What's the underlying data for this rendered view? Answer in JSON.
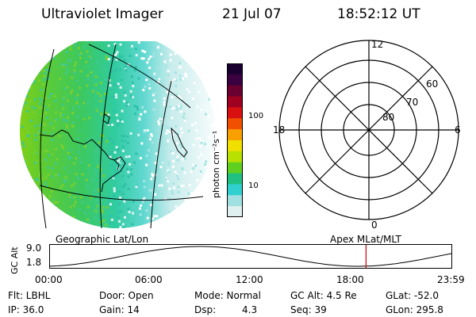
{
  "header": {
    "title": "Ultraviolet Imager",
    "date": "21 Jul 07",
    "time": "18:52:12 UT"
  },
  "colorbar": {
    "unit_label": "photon cm⁻²s⁻¹",
    "ticks": [
      "100",
      "10"
    ],
    "colors": [
      "#1a0030",
      "#3a0040",
      "#6a0030",
      "#a00020",
      "#d81010",
      "#f05000",
      "#f8a000",
      "#f0e000",
      "#b8e000",
      "#60d020",
      "#20c080",
      "#30d0d0",
      "#a0e0e0",
      "#e0f0f0"
    ]
  },
  "polar": {
    "labels": [
      "12",
      "18",
      "6",
      "0",
      "60",
      "70",
      "80"
    ]
  },
  "image_panel": {
    "caption": "Geographic Lat/Lon"
  },
  "apex_caption": "Apex MLat/MLT",
  "alt_plot": {
    "ylabel": "GC Alt",
    "y_ticks": [
      "9.0",
      "1.8"
    ],
    "x_ticks": [
      "00:00",
      "06:00",
      "12:00",
      "18:00",
      "23:59"
    ],
    "current_time_marker_hour": 18.87,
    "marker_color": "#cc0000"
  },
  "info": {
    "row1": {
      "flt": "Flt: LBHL",
      "door": "Door: Open",
      "mode": "Mode: Normal",
      "gcalt": "GC Alt: 4.5 Re",
      "glat": "GLat: -52.0"
    },
    "row2": {
      "ip": "IP: 36.0",
      "gain": "Gain: 14",
      "dsp_label": "Dsp:",
      "dsp_value": "4.3",
      "seq": "Seq: 39",
      "glon": "GLon: 295.8"
    }
  }
}
